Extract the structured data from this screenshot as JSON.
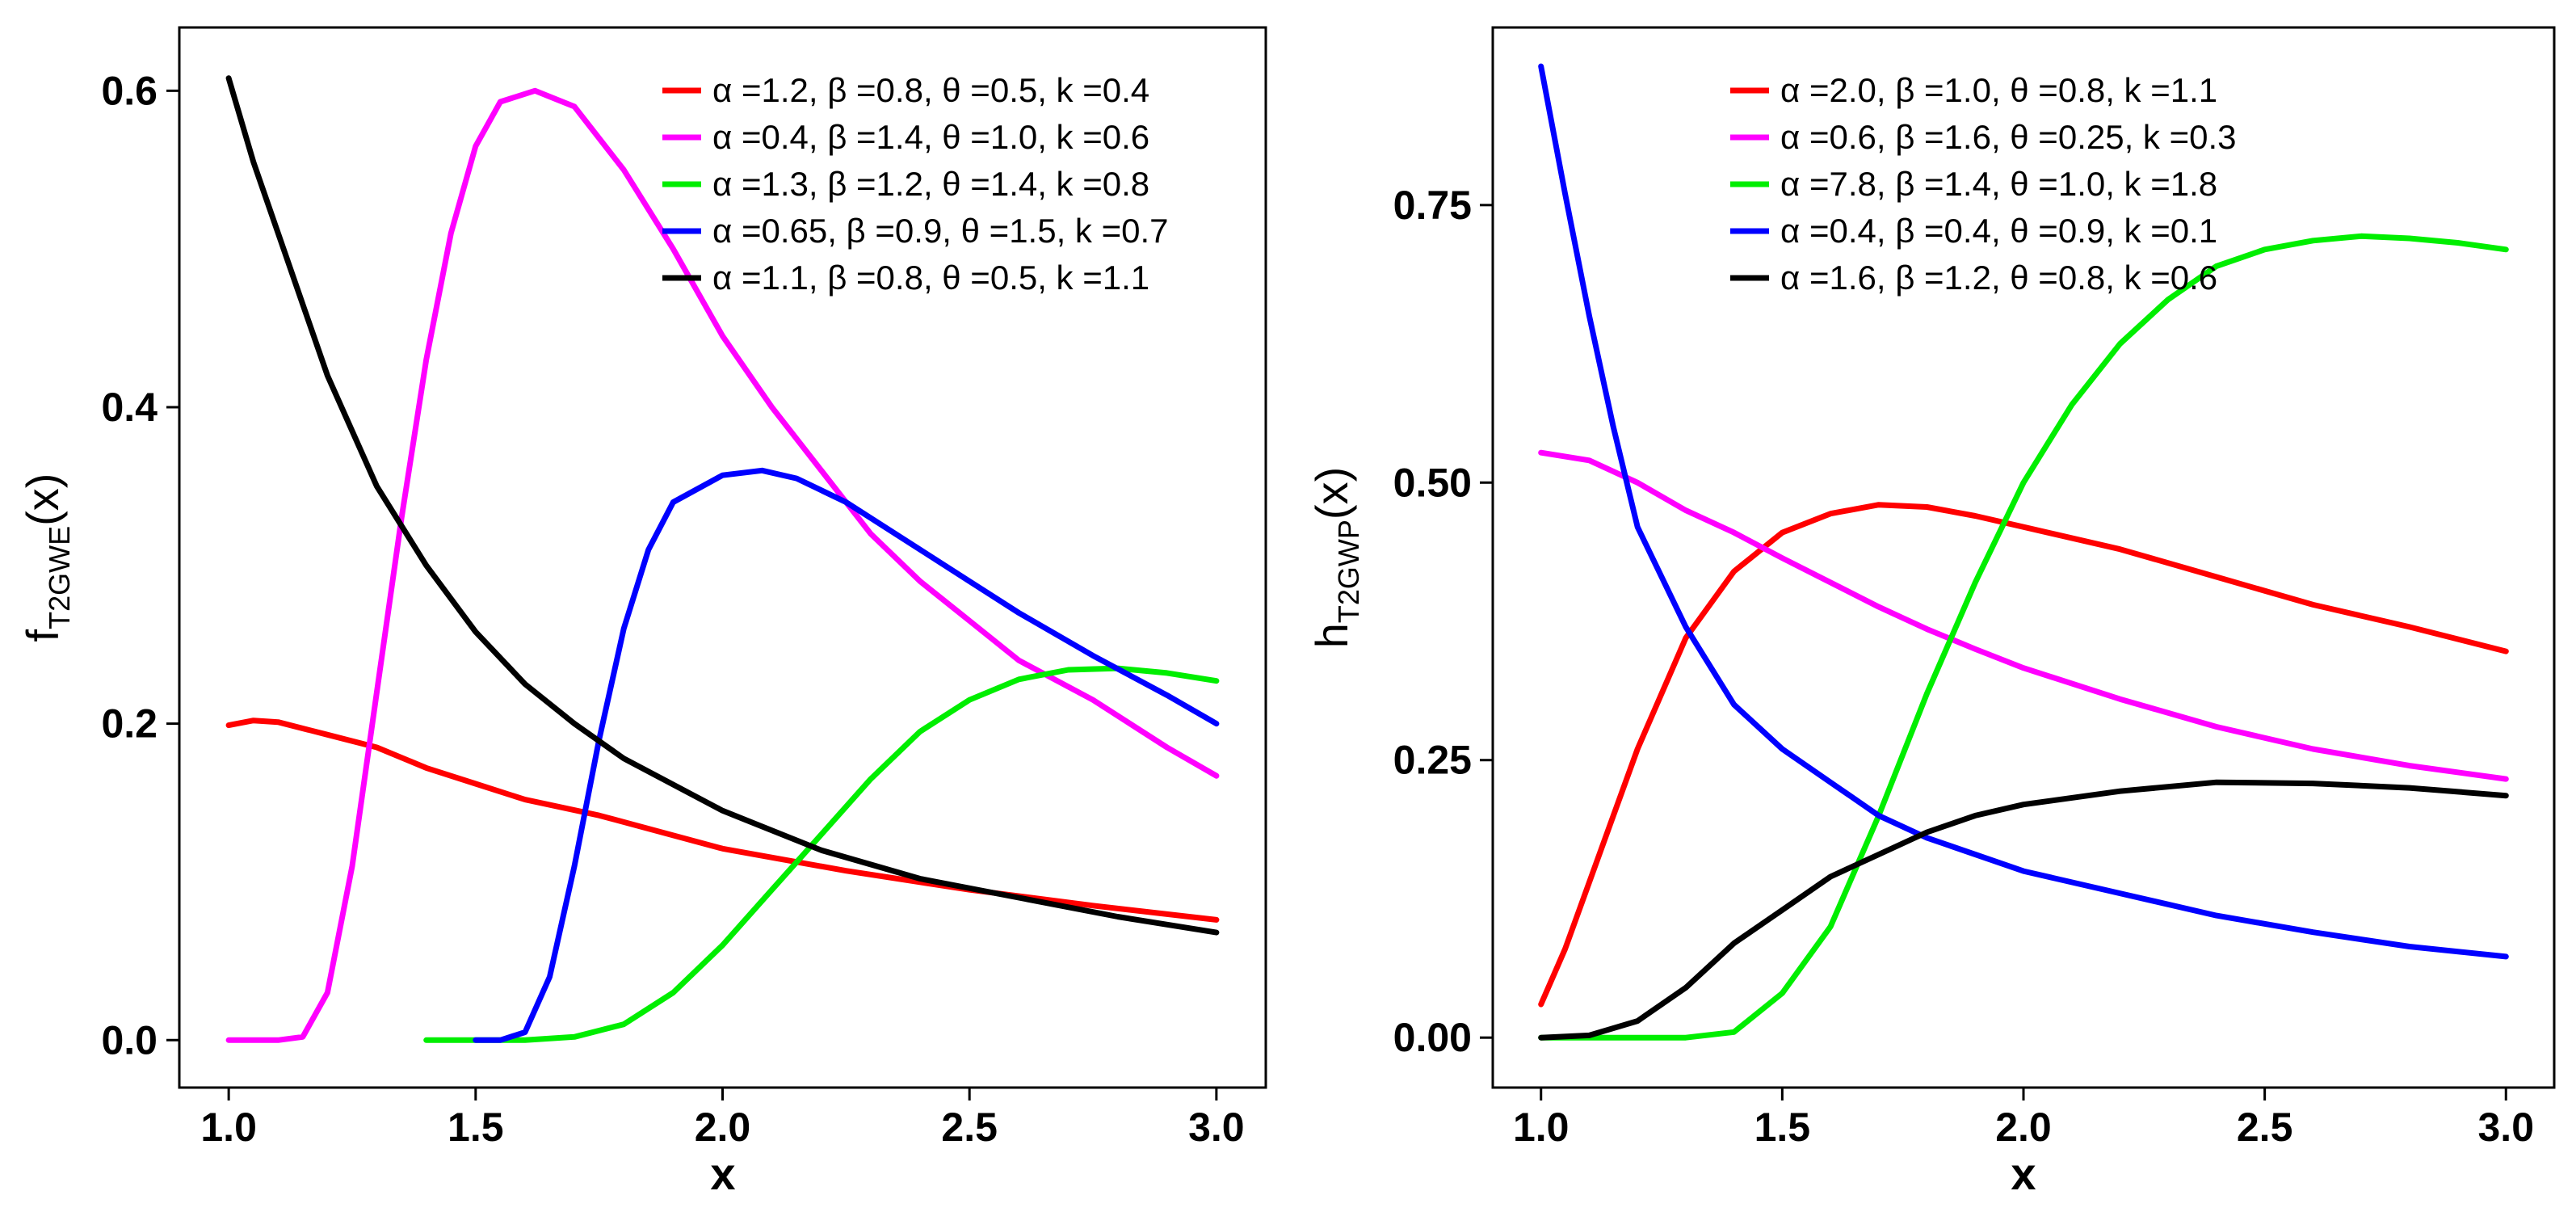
{
  "chart_data": [
    {
      "type": "line",
      "title": "",
      "xlabel": "x",
      "ylabel": {
        "main": "f",
        "sub": "T2GWE",
        "arg": "(x)"
      },
      "xlim": [
        0.9,
        3.1
      ],
      "ylim": [
        -0.03,
        0.64
      ],
      "xticks": [
        1.0,
        1.5,
        2.0,
        2.5,
        3.0
      ],
      "xtick_labels": [
        "1.0",
        "1.5",
        "2.0",
        "2.5",
        "3.0"
      ],
      "yticks": [
        0.0,
        0.2,
        0.4,
        0.6
      ],
      "ytick_labels": [
        "0.0",
        "0.2",
        "0.4",
        "0.6"
      ],
      "legend_position": "top-right",
      "series": [
        {
          "name": "α =1.2, β =0.8, θ =0.5, k =0.4",
          "color": "#ff0000",
          "points": [
            [
              1.0,
              0.199
            ],
            [
              1.05,
              0.202
            ],
            [
              1.1,
              0.201
            ],
            [
              1.2,
              0.193
            ],
            [
              1.3,
              0.185
            ],
            [
              1.4,
              0.172
            ],
            [
              1.5,
              0.162
            ],
            [
              1.6,
              0.152
            ],
            [
              1.75,
              0.142
            ],
            [
              2.0,
              0.121
            ],
            [
              2.25,
              0.107
            ],
            [
              2.5,
              0.095
            ],
            [
              2.75,
              0.085
            ],
            [
              3.0,
              0.076
            ]
          ]
        },
        {
          "name": "α =0.4, β =1.4, θ =1.0, k =0.6",
          "color": "#ff00ff",
          "points": [
            [
              1.0,
              0.0
            ],
            [
              1.1,
              0.0
            ],
            [
              1.15,
              0.002
            ],
            [
              1.2,
              0.03
            ],
            [
              1.25,
              0.11
            ],
            [
              1.3,
              0.22
            ],
            [
              1.35,
              0.33
            ],
            [
              1.4,
              0.43
            ],
            [
              1.45,
              0.51
            ],
            [
              1.5,
              0.565
            ],
            [
              1.55,
              0.593
            ],
            [
              1.62,
              0.6
            ],
            [
              1.7,
              0.59
            ],
            [
              1.8,
              0.55
            ],
            [
              1.9,
              0.5
            ],
            [
              2.0,
              0.445
            ],
            [
              2.1,
              0.4
            ],
            [
              2.2,
              0.36
            ],
            [
              2.3,
              0.32
            ],
            [
              2.4,
              0.29
            ],
            [
              2.5,
              0.265
            ],
            [
              2.6,
              0.24
            ],
            [
              2.75,
              0.215
            ],
            [
              2.9,
              0.185
            ],
            [
              3.0,
              0.167
            ]
          ]
        },
        {
          "name": "α =1.3, β =1.2, θ =1.4, k =0.8",
          "color": "#00ee00",
          "points": [
            [
              1.4,
              0.0
            ],
            [
              1.6,
              0.0
            ],
            [
              1.7,
              0.002
            ],
            [
              1.8,
              0.01
            ],
            [
              1.9,
              0.03
            ],
            [
              2.0,
              0.06
            ],
            [
              2.1,
              0.095
            ],
            [
              2.2,
              0.13
            ],
            [
              2.3,
              0.165
            ],
            [
              2.4,
              0.195
            ],
            [
              2.5,
              0.215
            ],
            [
              2.6,
              0.228
            ],
            [
              2.7,
              0.234
            ],
            [
              2.8,
              0.235
            ],
            [
              2.9,
              0.232
            ],
            [
              3.0,
              0.227
            ]
          ]
        },
        {
          "name": "α =0.65, β =0.9, θ =1.5, k =0.7",
          "color": "#0000ff",
          "points": [
            [
              1.5,
              0.0
            ],
            [
              1.55,
              0.0
            ],
            [
              1.6,
              0.005
            ],
            [
              1.65,
              0.04
            ],
            [
              1.7,
              0.11
            ],
            [
              1.75,
              0.19
            ],
            [
              1.8,
              0.26
            ],
            [
              1.85,
              0.31
            ],
            [
              1.9,
              0.34
            ],
            [
              2.0,
              0.357
            ],
            [
              2.08,
              0.36
            ],
            [
              2.15,
              0.355
            ],
            [
              2.25,
              0.34
            ],
            [
              2.4,
              0.31
            ],
            [
              2.5,
              0.29
            ],
            [
              2.6,
              0.27
            ],
            [
              2.75,
              0.243
            ],
            [
              2.9,
              0.218
            ],
            [
              3.0,
              0.2
            ]
          ]
        },
        {
          "name": "α =1.1, β =0.8, θ =0.5, k =1.1",
          "color": "#000000",
          "points": [
            [
              1.0,
              0.608
            ],
            [
              1.05,
              0.555
            ],
            [
              1.1,
              0.51
            ],
            [
              1.15,
              0.465
            ],
            [
              1.2,
              0.42
            ],
            [
              1.3,
              0.35
            ],
            [
              1.4,
              0.3
            ],
            [
              1.5,
              0.258
            ],
            [
              1.6,
              0.225
            ],
            [
              1.7,
              0.2
            ],
            [
              1.8,
              0.178
            ],
            [
              2.0,
              0.145
            ],
            [
              2.2,
              0.12
            ],
            [
              2.4,
              0.102
            ],
            [
              2.6,
              0.09
            ],
            [
              2.8,
              0.078
            ],
            [
              3.0,
              0.068
            ]
          ]
        }
      ]
    },
    {
      "type": "line",
      "title": "",
      "xlabel": "x",
      "ylabel": {
        "main": "h",
        "sub": "T2GWP",
        "arg": "(x)"
      },
      "xlim": [
        0.9,
        3.1
      ],
      "ylim": [
        -0.045,
        0.91
      ],
      "xticks": [
        1.0,
        1.5,
        2.0,
        2.5,
        3.0
      ],
      "xtick_labels": [
        "1.0",
        "1.5",
        "2.0",
        "2.5",
        "3.0"
      ],
      "yticks": [
        0.0,
        0.25,
        0.5,
        0.75
      ],
      "ytick_labels": [
        "0.00",
        "0.25",
        "0.50",
        "0.75"
      ],
      "legend_position": "top-center",
      "series": [
        {
          "name": "α =2.0, β =1.0, θ =0.8, k =1.1",
          "color": "#ff0000",
          "points": [
            [
              1.0,
              0.03
            ],
            [
              1.05,
              0.08
            ],
            [
              1.1,
              0.14
            ],
            [
              1.15,
              0.2
            ],
            [
              1.2,
              0.26
            ],
            [
              1.3,
              0.36
            ],
            [
              1.4,
              0.42
            ],
            [
              1.5,
              0.455
            ],
            [
              1.6,
              0.472
            ],
            [
              1.7,
              0.48
            ],
            [
              1.8,
              0.478
            ],
            [
              1.9,
              0.47
            ],
            [
              2.0,
              0.46
            ],
            [
              2.2,
              0.44
            ],
            [
              2.4,
              0.415
            ],
            [
              2.6,
              0.39
            ],
            [
              2.8,
              0.37
            ],
            [
              3.0,
              0.348
            ]
          ]
        },
        {
          "name": "α =0.6, β =1.6, θ =0.25, k =0.3",
          "color": "#ff00ff",
          "points": [
            [
              1.0,
              0.527
            ],
            [
              1.1,
              0.52
            ],
            [
              1.2,
              0.5
            ],
            [
              1.3,
              0.475
            ],
            [
              1.4,
              0.455
            ],
            [
              1.5,
              0.432
            ],
            [
              1.6,
              0.41
            ],
            [
              1.7,
              0.388
            ],
            [
              1.8,
              0.368
            ],
            [
              1.9,
              0.35
            ],
            [
              2.0,
              0.333
            ],
            [
              2.2,
              0.305
            ],
            [
              2.4,
              0.28
            ],
            [
              2.6,
              0.26
            ],
            [
              2.8,
              0.245
            ],
            [
              3.0,
              0.233
            ]
          ]
        },
        {
          "name": "α =7.8, β =1.4, θ =1.0, k =1.8",
          "color": "#00ee00",
          "points": [
            [
              1.0,
              0.0
            ],
            [
              1.3,
              0.0
            ],
            [
              1.4,
              0.005
            ],
            [
              1.5,
              0.04
            ],
            [
              1.6,
              0.1
            ],
            [
              1.7,
              0.2
            ],
            [
              1.8,
              0.31
            ],
            [
              1.9,
              0.41
            ],
            [
              2.0,
              0.5
            ],
            [
              2.1,
              0.57
            ],
            [
              2.2,
              0.625
            ],
            [
              2.3,
              0.665
            ],
            [
              2.4,
              0.695
            ],
            [
              2.5,
              0.71
            ],
            [
              2.6,
              0.718
            ],
            [
              2.7,
              0.722
            ],
            [
              2.8,
              0.72
            ],
            [
              2.9,
              0.716
            ],
            [
              3.0,
              0.71
            ]
          ]
        },
        {
          "name": "α =0.4, β =0.4, θ =0.9, k =0.1",
          "color": "#0000ff",
          "points": [
            [
              1.0,
              0.875
            ],
            [
              1.05,
              0.76
            ],
            [
              1.1,
              0.65
            ],
            [
              1.15,
              0.55
            ],
            [
              1.2,
              0.46
            ],
            [
              1.3,
              0.37
            ],
            [
              1.4,
              0.3
            ],
            [
              1.5,
              0.26
            ],
            [
              1.6,
              0.23
            ],
            [
              1.7,
              0.2
            ],
            [
              1.8,
              0.18
            ],
            [
              2.0,
              0.15
            ],
            [
              2.2,
              0.13
            ],
            [
              2.4,
              0.11
            ],
            [
              2.6,
              0.095
            ],
            [
              2.8,
              0.082
            ],
            [
              3.0,
              0.073
            ]
          ]
        },
        {
          "name": "α =1.6, β =1.2, θ =0.8, k =0.6",
          "color": "#000000",
          "points": [
            [
              1.0,
              0.0
            ],
            [
              1.1,
              0.002
            ],
            [
              1.2,
              0.015
            ],
            [
              1.3,
              0.045
            ],
            [
              1.4,
              0.085
            ],
            [
              1.5,
              0.115
            ],
            [
              1.6,
              0.145
            ],
            [
              1.7,
              0.165
            ],
            [
              1.8,
              0.185
            ],
            [
              1.9,
              0.2
            ],
            [
              2.0,
              0.21
            ],
            [
              2.2,
              0.222
            ],
            [
              2.4,
              0.23
            ],
            [
              2.6,
              0.229
            ],
            [
              2.8,
              0.225
            ],
            [
              3.0,
              0.218
            ]
          ]
        }
      ]
    }
  ]
}
